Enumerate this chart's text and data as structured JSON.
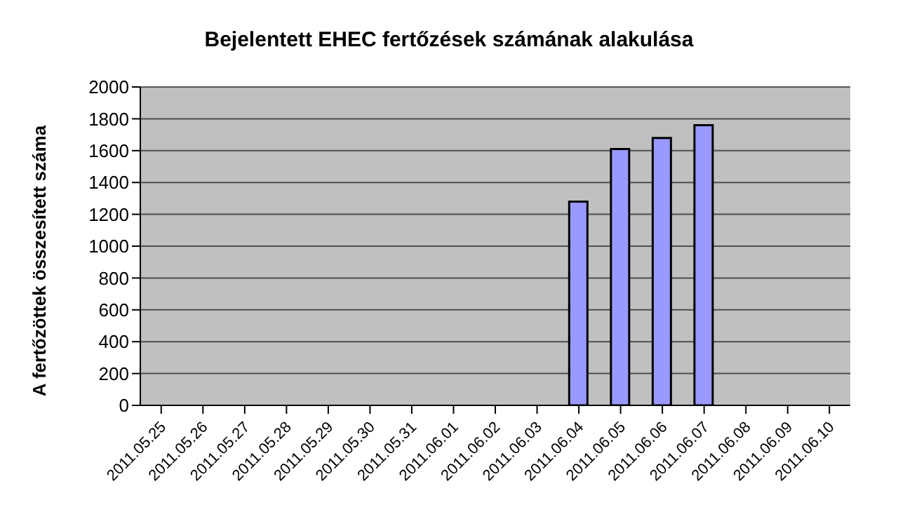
{
  "chart_data": {
    "type": "bar",
    "title": "Bejelentett EHEC fertőzések számának alakulása",
    "ylabel": "A fertőzöttek összesített száma",
    "categories": [
      "2011.05.25",
      "2011.05.26",
      "2011.05.27",
      "2011.05.28",
      "2011.05.29",
      "2011.05.30",
      "2011.05.31",
      "2011.06.01",
      "2011.06.02",
      "2011.06.03",
      "2011.06.04",
      "2011.06.05",
      "2011.06.06",
      "2011.06.07",
      "2011.06.08",
      "2011.06.09",
      "2011.06.10"
    ],
    "values": [
      null,
      null,
      null,
      null,
      null,
      null,
      null,
      null,
      null,
      null,
      1280,
      1610,
      1680,
      1760,
      null,
      null,
      null
    ],
    "color": "#9999ff",
    "ylim": [
      0,
      2000
    ],
    "yticks": [
      0,
      200,
      400,
      600,
      800,
      1000,
      1200,
      1400,
      1600,
      1800,
      2000
    ],
    "grid": "y"
  }
}
